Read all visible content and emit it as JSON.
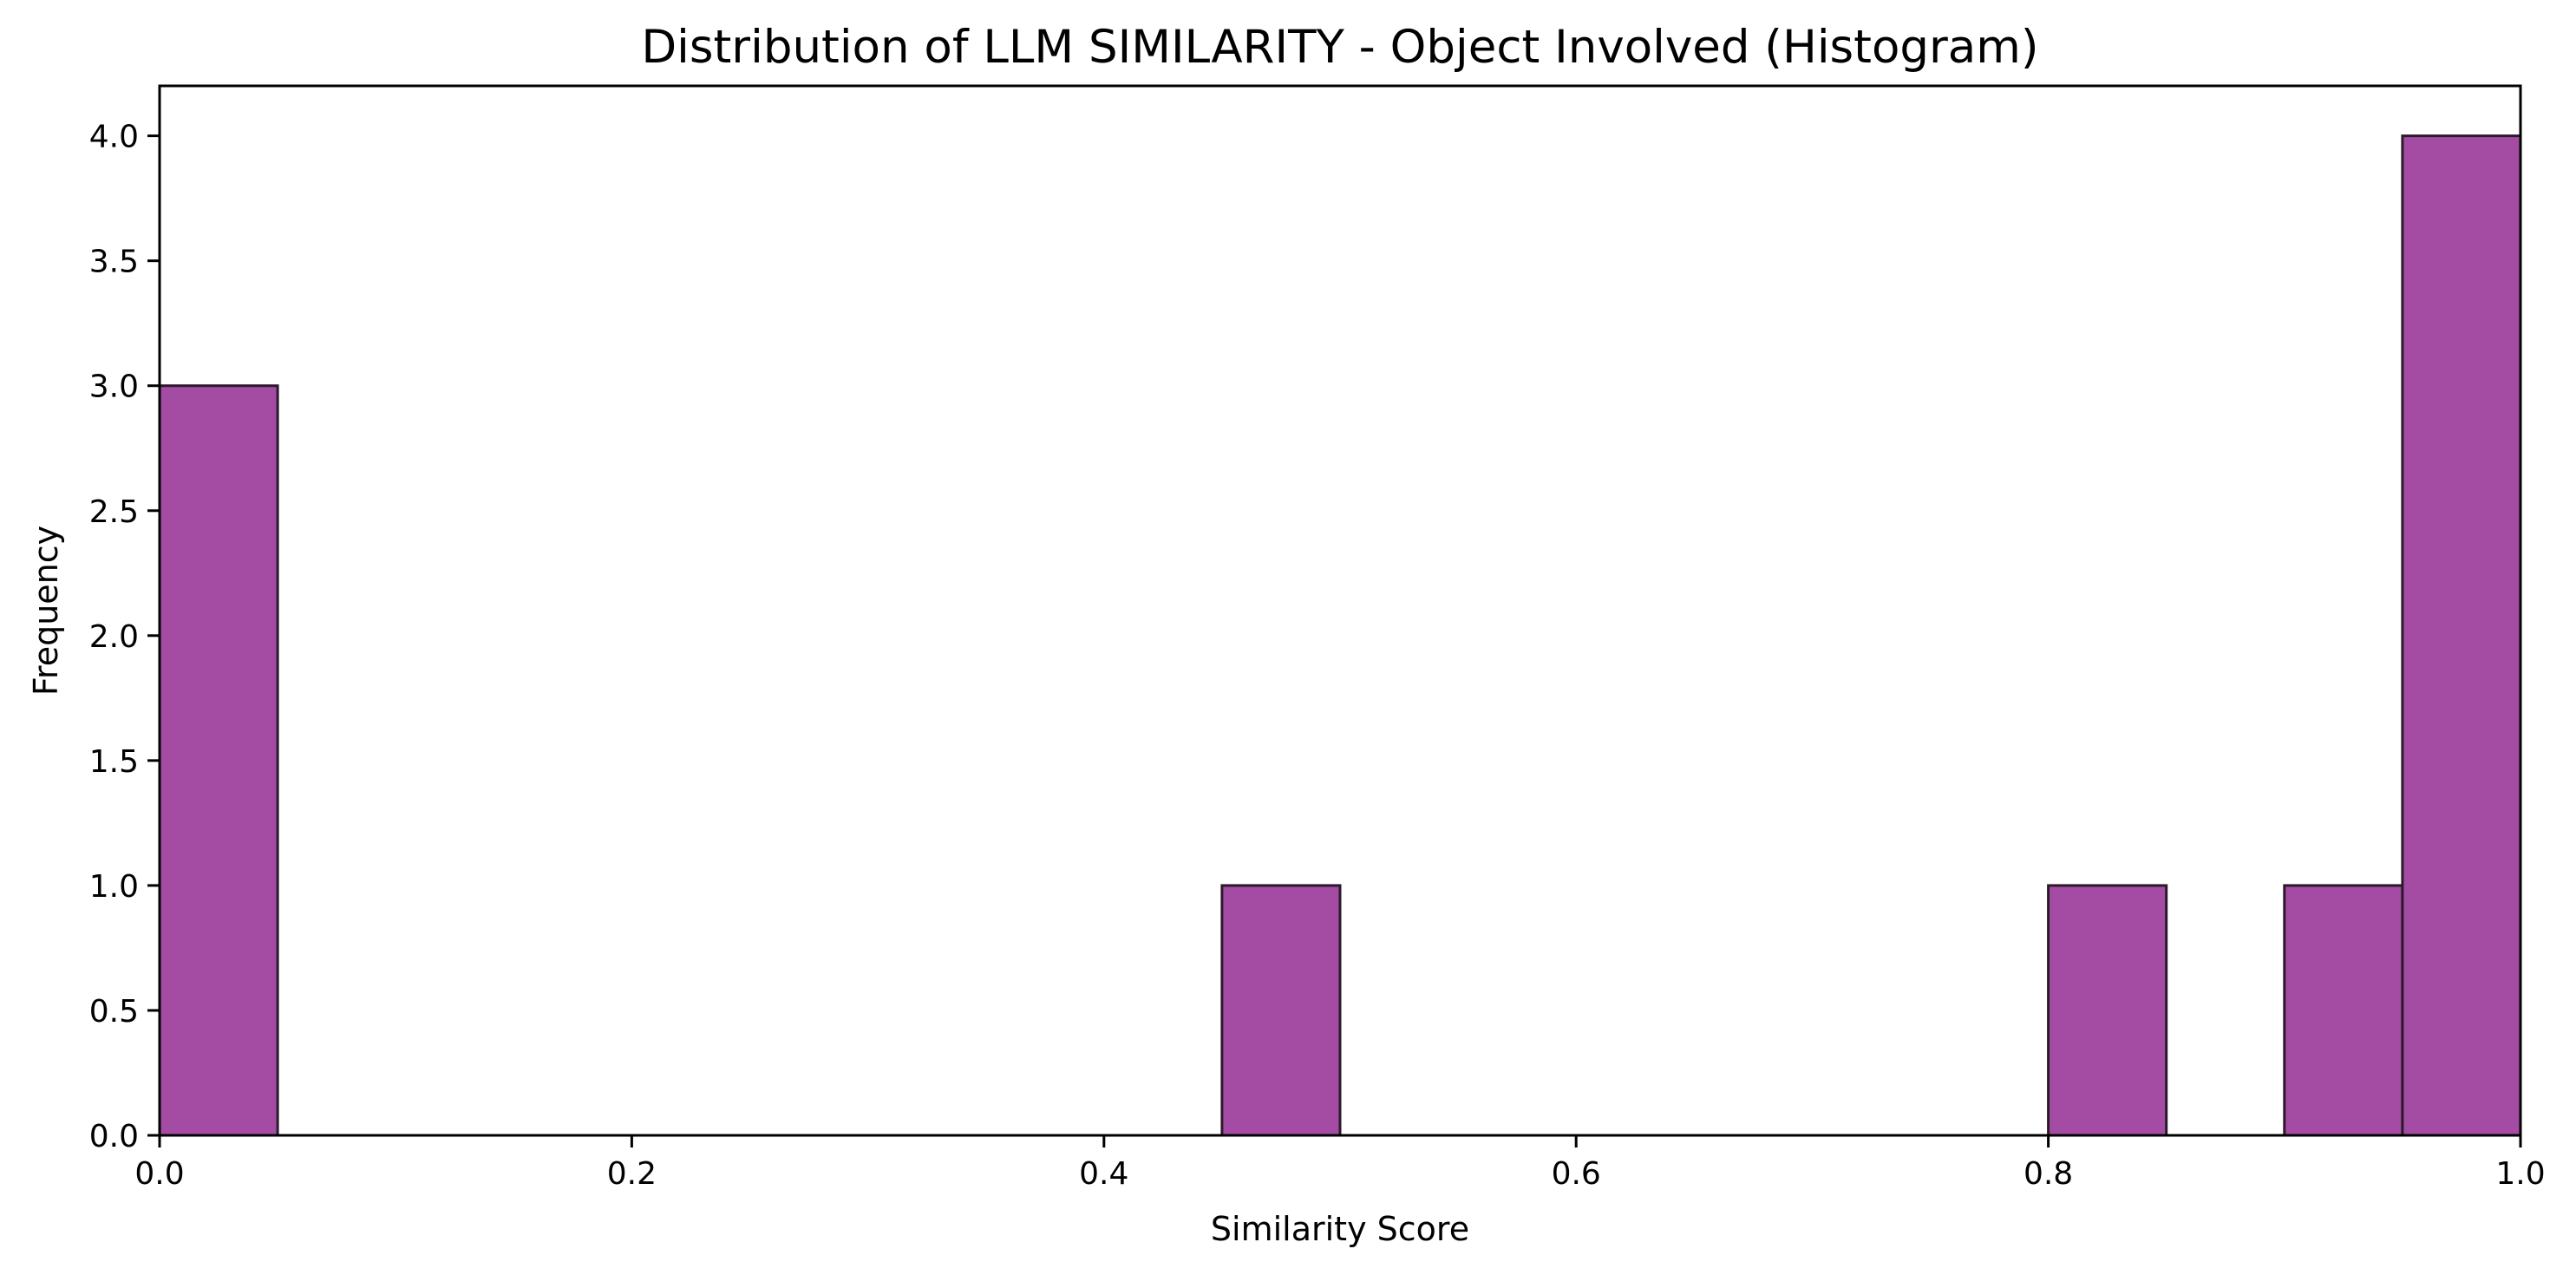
{
  "chart_data": {
    "type": "bar",
    "title": "Distribution of LLM SIMILARITY - Object Involved (Histogram)",
    "xlabel": "Similarity Score",
    "ylabel": "Frequency",
    "xlim": [
      0.0,
      1.0
    ],
    "ylim": [
      0.0,
      4.2
    ],
    "x_ticks": [
      "0.0",
      "0.2",
      "0.4",
      "0.6",
      "0.8",
      "1.0"
    ],
    "y_ticks": [
      "0.0",
      "0.5",
      "1.0",
      "1.5",
      "2.0",
      "2.5",
      "3.0",
      "3.5",
      "4.0"
    ],
    "bins": [
      {
        "start": 0.0,
        "end": 0.05,
        "count": 3
      },
      {
        "start": 0.45,
        "end": 0.5,
        "count": 1
      },
      {
        "start": 0.8,
        "end": 0.85,
        "count": 1
      },
      {
        "start": 0.9,
        "end": 0.95,
        "count": 1
      },
      {
        "start": 0.95,
        "end": 1.0,
        "count": 4
      }
    ],
    "bar_color": "#a44ca3",
    "edge_color": "#2b1a2b",
    "grid": false,
    "legend": "none"
  }
}
